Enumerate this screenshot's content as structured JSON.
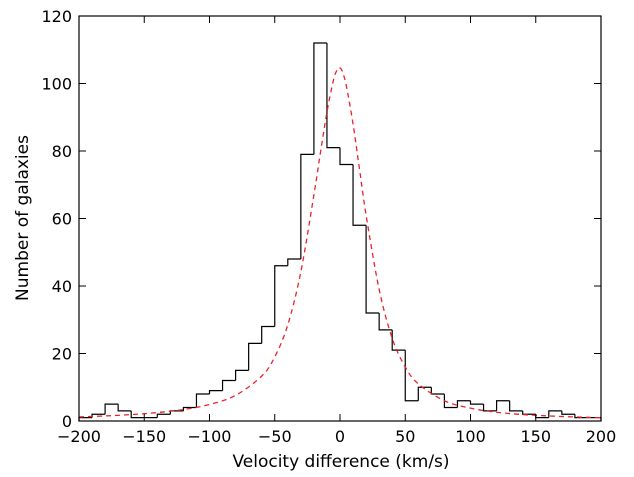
{
  "chart_data": {
    "type": "bar",
    "xlabel": "Velocity difference (km/s)",
    "ylabel": "Number of galaxies",
    "xlim": [
      -200,
      200
    ],
    "ylim": [
      0,
      120
    ],
    "xticks": [
      -200,
      -150,
      -100,
      -50,
      0,
      50,
      100,
      150,
      200
    ],
    "yticks": [
      0,
      20,
      40,
      60,
      80,
      100,
      120
    ],
    "grid": false,
    "histogram": {
      "name": "",
      "style": "step",
      "color": "#000000",
      "bin_width": 10,
      "bin_edges": [
        -200,
        -190,
        -180,
        -170,
        -160,
        -150,
        -140,
        -130,
        -120,
        -110,
        -100,
        -90,
        -80,
        -70,
        -60,
        -50,
        -40,
        -30,
        -20,
        -10,
        0,
        10,
        20,
        30,
        40,
        50,
        60,
        70,
        80,
        90,
        100,
        110,
        120,
        130,
        140,
        150,
        160,
        170,
        180,
        190,
        200
      ],
      "counts": [
        1,
        2,
        5,
        3,
        1,
        1,
        2,
        3,
        4,
        8,
        9,
        12,
        15,
        23,
        28,
        46,
        48,
        79,
        112,
        81,
        76,
        58,
        32,
        27,
        21,
        6,
        10,
        8,
        4,
        6,
        5,
        3,
        6,
        3,
        2,
        1,
        3,
        2,
        1,
        1
      ]
    },
    "fit_curve": {
      "name": "",
      "style": "dashed",
      "color": "#e8242b",
      "x": [
        -200,
        -180,
        -160,
        -140,
        -120,
        -100,
        -80,
        -60,
        -50,
        -40,
        -30,
        -20,
        -15,
        -10,
        -5,
        -2,
        0,
        2,
        5,
        10,
        15,
        20,
        30,
        40,
        50,
        60,
        80,
        100,
        120,
        140,
        160,
        180,
        200
      ],
      "y": [
        1.2,
        1.5,
        1.9,
        2.5,
        3.4,
        4.9,
        7.6,
        13.3,
        19.0,
        28.5,
        44.2,
        67.0,
        79.5,
        91.5,
        101.0,
        104.2,
        104.6,
        103.4,
        99.0,
        88.0,
        74.5,
        61.0,
        39.0,
        24.5,
        16.0,
        11.0,
        6.0,
        3.8,
        2.6,
        1.9,
        1.5,
        1.2,
        1.0
      ]
    }
  }
}
